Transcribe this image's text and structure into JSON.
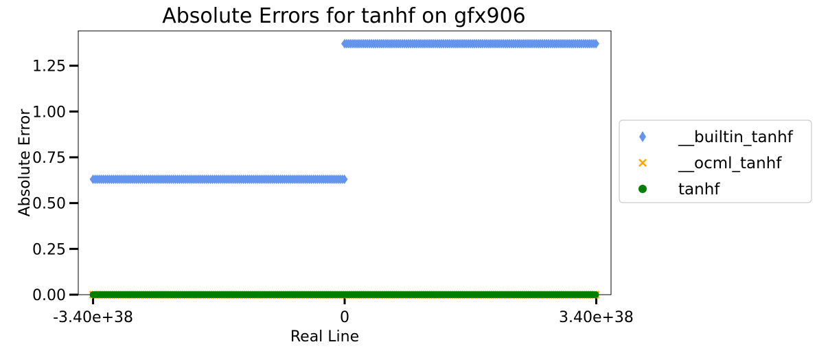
{
  "chart_data": {
    "type": "scatter",
    "title": "Absolute Errors for tanhf on gfx906",
    "xlabel": "Real Line",
    "ylabel": "Absolute Error",
    "xlim": [
      -3.6e+38,
      3.6e+38
    ],
    "ylim": [
      0,
      1.44
    ],
    "x_ticks": [
      -3.4e+38,
      0,
      3.4e+38
    ],
    "x_tick_labels": [
      "-3.40e+38",
      "0",
      "3.40e+38"
    ],
    "y_ticks": [
      0,
      0.25,
      0.5,
      0.75,
      1.0,
      1.25
    ],
    "y_tick_labels": [
      "0.00",
      "0.25",
      "0.50",
      "0.75",
      "1.00",
      "1.25"
    ],
    "grid": false,
    "legend_placement": "outside-right",
    "series": [
      {
        "name": "__builtin_tanhf",
        "marker": "thin-diamond",
        "color": "#6495ED",
        "segments": [
          {
            "x_start": -3.4e+38,
            "x_end": 0,
            "y": 0.63
          },
          {
            "x_start": 0,
            "x_end": 3.4e+38,
            "y": 1.37
          }
        ]
      },
      {
        "name": "__ocml_tanhf",
        "marker": "x",
        "color": "#FFA500",
        "segments": [
          {
            "x_start": -3.4e+38,
            "x_end": 3.4e+38,
            "y": 0
          }
        ]
      },
      {
        "name": "tanhf",
        "marker": "circle",
        "color": "#008000",
        "segments": [
          {
            "x_start": -3.4e+38,
            "x_end": 3.4e+38,
            "y": 0
          }
        ]
      }
    ]
  }
}
